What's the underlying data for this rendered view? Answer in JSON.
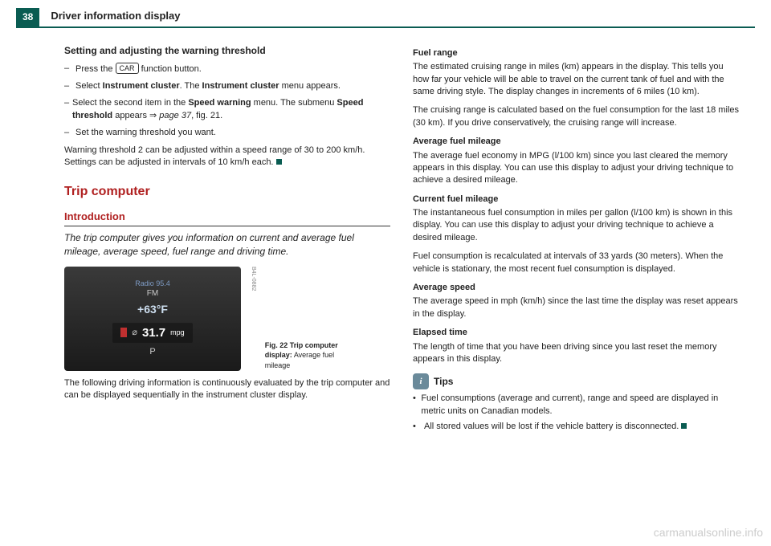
{
  "header": {
    "page_number": "38",
    "title": "Driver information display"
  },
  "left": {
    "h1": "Setting and adjusting the warning threshold",
    "steps": [
      {
        "pre": "Press the ",
        "btn": "CAR",
        "post": " function button."
      },
      {
        "text": "Select <b>Instrument cluster</b>. The <b>Instrument cluster</b> menu appears."
      },
      {
        "text": "Select the second item in the <b>Speed warning</b> menu. The submenu <b>Speed threshold</b> appears ⇒ <i>page 37</i>, fig. 21."
      },
      {
        "text": "Set the warning threshold you want."
      }
    ],
    "note": "Warning threshold 2 can be adjusted within a speed range of 30 to 200 km/h. Settings can be adjusted in intervals of 10 km/h each.",
    "section_title": "Trip computer",
    "section_sub": "Introduction",
    "intro": "The trip computer gives you information on current and average fuel mileage, average speed, fuel range and driving time.",
    "display": {
      "radio": "Radio 95.4",
      "fm": "FM",
      "temp": "+63°F",
      "mpg_val": "31.7",
      "mpg_unit": "mpg",
      "gear": "P",
      "vert": "B4L-0882"
    },
    "fig_caption_bold": "Fig. 22  Trip computer display:",
    "fig_caption_rest": " Average fuel mileage",
    "bottom": "The following driving information is continuously evaluated by the trip computer and can be displayed sequentially in the instrument cluster display."
  },
  "right": {
    "sections": [
      {
        "h": "Fuel range",
        "p": "The estimated cruising range in miles (km) appears in the display. This tells you how far your vehicle will be able to travel on the current tank of fuel and with the same driving style. The display changes in increments of 6 miles (10 km)."
      },
      {
        "p": "The cruising range is calculated based on the fuel consumption for the last 18 miles (30 km). If you drive conservatively, the cruising range will increase."
      },
      {
        "h": "Average fuel mileage",
        "p": "The average fuel economy in MPG (l/100 km) since you last cleared the memory appears in this display. You can use this display to adjust your driving technique to achieve a desired mileage."
      },
      {
        "h": "Current fuel mileage",
        "p": "The instantaneous fuel consumption in miles per gallon (l/100 km) is shown in this display. You can use this display to adjust your driving technique to achieve a desired mileage."
      },
      {
        "p": "Fuel consumption is recalculated at intervals of 33 yards (30 meters). When the vehicle is stationary, the most recent fuel consumption is displayed."
      },
      {
        "h": "Average speed",
        "p": "The average speed in mph (km/h) since the last time the display was reset appears in the display."
      },
      {
        "h": "Elapsed time",
        "p": "The length of time that you have been driving since you last reset the memory appears in this display."
      }
    ],
    "tips_label": "Tips",
    "tips": [
      "Fuel consumptions (average and current), range and speed are displayed in metric units on Canadian models.",
      "All stored values will be lost if the vehicle battery is disconnected."
    ]
  },
  "watermark": "carmanualsonline.info"
}
